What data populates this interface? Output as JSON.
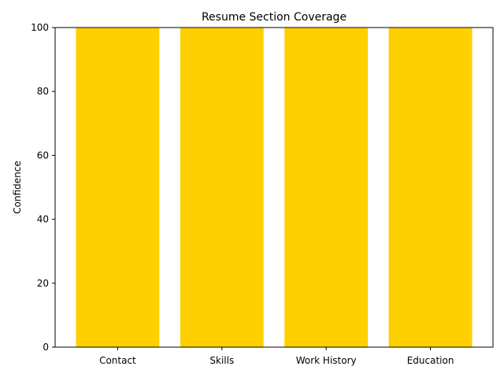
{
  "chart_data": {
    "type": "bar",
    "title": "Resume Section Coverage",
    "xlabel": "",
    "ylabel": "Confidence",
    "categories": [
      "Contact",
      "Skills",
      "Work History",
      "Education"
    ],
    "values": [
      100,
      100,
      100,
      100
    ],
    "ylim": [
      0,
      100
    ],
    "yticks": [
      0,
      20,
      40,
      60,
      80,
      100
    ],
    "grid": false,
    "legend": "none",
    "bar_color": "#FFD000"
  }
}
